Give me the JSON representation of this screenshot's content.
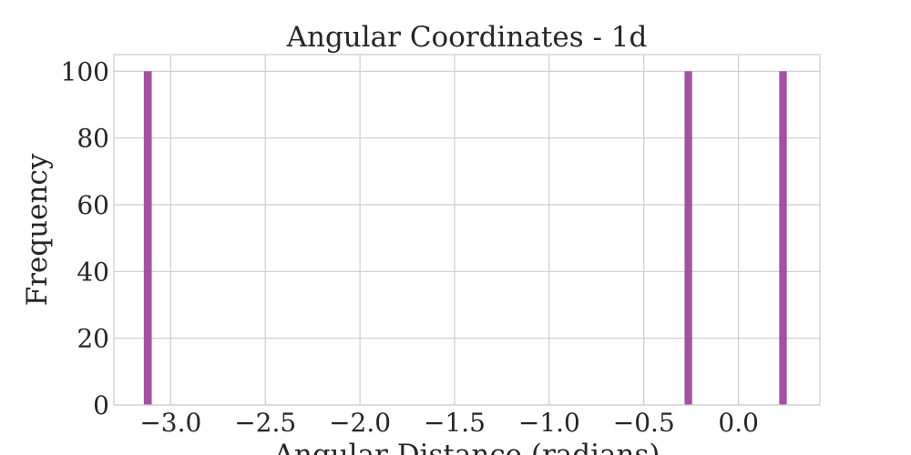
{
  "chart_data": {
    "type": "bar",
    "title": "Angular Coordinates - 1d",
    "xlabel": "Angular Distance (radians)",
    "ylabel": "Frequency",
    "xlim": [
      -3.3,
      0.43
    ],
    "ylim": [
      0,
      105
    ],
    "xticks": [
      -3.0,
      -2.5,
      -2.0,
      -1.5,
      -1.0,
      -0.5,
      0.0
    ],
    "xtick_labels": [
      "−3.0",
      "−2.5",
      "−2.0",
      "−1.5",
      "−1.0",
      "−0.5",
      "0.0"
    ],
    "yticks": [
      0,
      20,
      40,
      60,
      80,
      100
    ],
    "ytick_labels": [
      "0",
      "20",
      "40",
      "60",
      "80",
      "100"
    ],
    "grid": true,
    "bar_color": "#9b3d9b",
    "bars": [
      {
        "x_start": -3.142,
        "x_end": -3.1,
        "value": 100
      },
      {
        "x_start": -0.285,
        "x_end": -0.245,
        "value": 100
      },
      {
        "x_start": 0.215,
        "x_end": 0.255,
        "value": 100
      }
    ]
  }
}
